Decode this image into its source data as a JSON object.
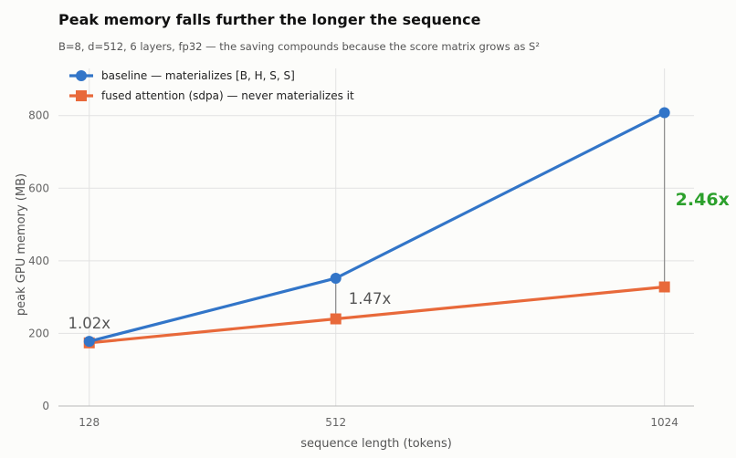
{
  "chart_data": {
    "type": "line",
    "title": "Peak memory falls further the longer the sequence",
    "subtitle": "B=8, d=512, 6 layers, fp32 — the saving compounds because the score matrix grows as S²",
    "xlabel": "sequence length (tokens)",
    "ylabel": "peak GPU memory (MB)",
    "x": [
      128,
      512,
      1024
    ],
    "x_tick_labels": [
      "128",
      "512",
      "1024"
    ],
    "xlim": [
      80,
      1070
    ],
    "ylim": [
      0,
      930
    ],
    "y_ticks": [
      0,
      200,
      400,
      600,
      800
    ],
    "y_tick_labels": [
      "0",
      "200",
      "400",
      "600",
      "800"
    ],
    "grid": true,
    "legend_position": "top-left",
    "series": [
      {
        "name": "baseline — materializes [B, H, S, S]",
        "values": [
          178,
          352,
          808
        ],
        "color": "#3275c8",
        "marker": "circle"
      },
      {
        "name": "fused attention (sdpa) — never materializes it",
        "values": [
          174,
          240,
          328
        ],
        "color": "#e8693a",
        "marker": "square"
      }
    ],
    "annotations": [
      {
        "x": 128,
        "text": "1.02x",
        "emphasis": false
      },
      {
        "x": 512,
        "text": "1.47x",
        "emphasis": false
      },
      {
        "x": 1024,
        "text": "2.46x",
        "emphasis": true,
        "color": "#2ca02c"
      }
    ]
  }
}
